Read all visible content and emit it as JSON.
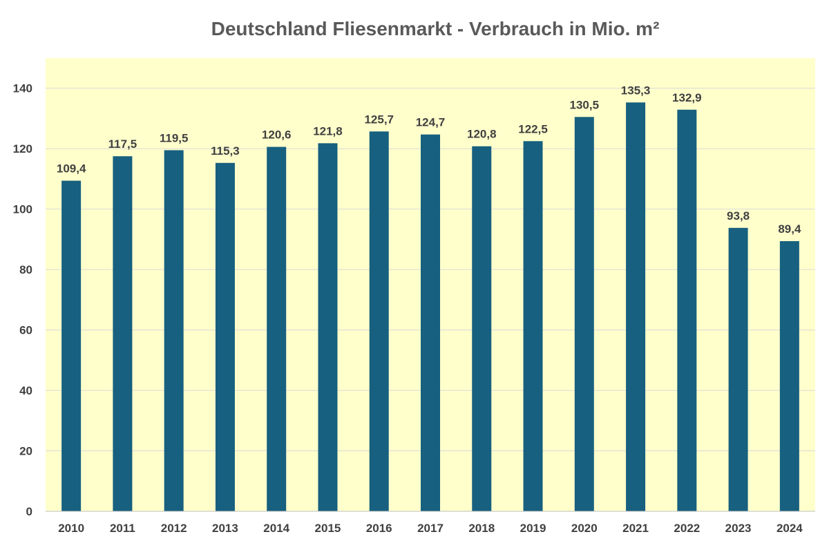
{
  "chart_data": {
    "type": "bar",
    "title": "Deutschland Fliesenmarkt - Verbrauch in Mio. m²",
    "categories": [
      "2010",
      "2011",
      "2012",
      "2013",
      "2014",
      "2015",
      "2016",
      "2017",
      "2018",
      "2019",
      "2020",
      "2021",
      "2022",
      "2023",
      "2024"
    ],
    "values": [
      109.4,
      117.5,
      119.5,
      115.3,
      120.6,
      121.8,
      125.7,
      124.7,
      120.8,
      122.5,
      130.5,
      135.3,
      132.9,
      93.8,
      89.4
    ],
    "data_labels": [
      "109,4",
      "117,5",
      "119,5",
      "115,3",
      "120,6",
      "121,8",
      "125,7",
      "124,7",
      "120,8",
      "122,5",
      "130,5",
      "135,3",
      "132,9",
      "93,8",
      "89,4"
    ],
    "y_ticks": [
      "0",
      "20",
      "40",
      "60",
      "80",
      "100",
      "120",
      "140"
    ],
    "ylim": [
      0,
      150
    ],
    "xlabel": "",
    "ylabel": "",
    "grid": true,
    "legend": "none",
    "colors": {
      "bar": "#17607f",
      "plot_background": "#ffffcc",
      "grid": "#d9d9d9",
      "axis": "#bfbfbf"
    }
  }
}
